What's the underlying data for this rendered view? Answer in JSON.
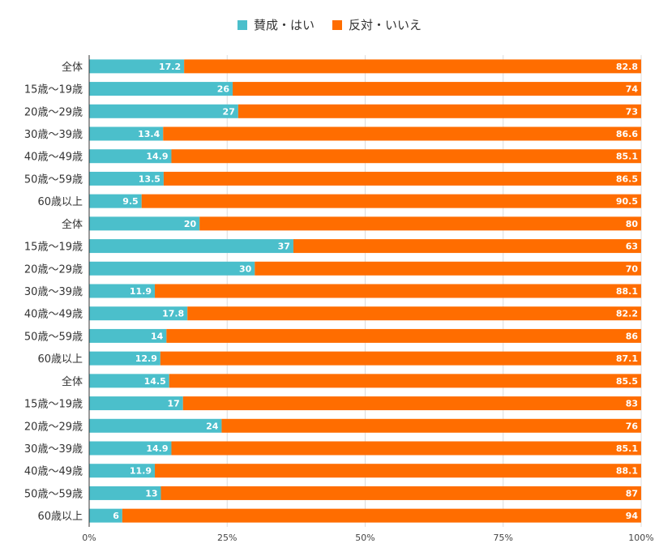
{
  "colors": {
    "yes": "#4bbfcb",
    "no": "#ff6d00",
    "grid": "#dcdcdc",
    "axis": "#333333",
    "label_text": "#ffffff"
  },
  "chart_data": {
    "type": "bar",
    "orientation": "horizontal",
    "stacked": "percent",
    "title": "",
    "legend_position": "top",
    "grid": true,
    "xlim": [
      0,
      100
    ],
    "x_ticks": [
      "0%",
      "25%",
      "50%",
      "75%",
      "100%"
    ],
    "categories": [
      "全体",
      "15歳～19歳",
      "20歳～29歳",
      "30歳～39歳",
      "40歳～49歳",
      "50歳～59歳",
      "60歳以上",
      "全体",
      "15歳～19歳",
      "20歳～29歳",
      "30歳～39歳",
      "40歳～49歳",
      "50歳～59歳",
      "60歳以上",
      "全体",
      "15歳～19歳",
      "20歳～29歳",
      "30歳～39歳",
      "40歳～49歳",
      "50歳～59歳",
      "60歳以上"
    ],
    "series": [
      {
        "name": "賛成・はい",
        "values": [
          17.2,
          26,
          27,
          13.4,
          14.9,
          13.5,
          9.5,
          20,
          37,
          30,
          11.9,
          17.8,
          14,
          12.9,
          14.5,
          17,
          24,
          14.9,
          11.9,
          13,
          6
        ]
      },
      {
        "name": "反対・いいえ",
        "values": [
          82.8,
          74,
          73,
          86.6,
          85.1,
          86.5,
          90.5,
          80,
          63,
          70,
          88.1,
          82.2,
          86,
          87.1,
          85.5,
          83,
          76,
          85.1,
          88.1,
          87,
          94
        ]
      }
    ]
  }
}
